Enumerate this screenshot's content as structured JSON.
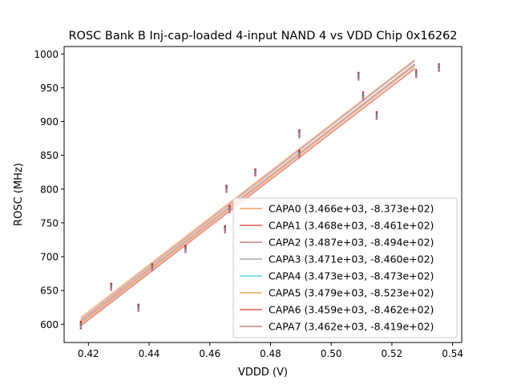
{
  "chart_data": {
    "type": "line",
    "title": "ROSC Bank B Inj-cap-loaded 4-input NAND 4 vs VDD Chip 0x16262",
    "xlabel": "VDDD (V)",
    "ylabel": "ROSC (MHz)",
    "xlim": [
      0.412,
      0.543
    ],
    "ylim": [
      573,
      1011
    ],
    "xticks": [
      0.42,
      0.44,
      0.46,
      0.48,
      0.5,
      0.52,
      0.54
    ],
    "xtick_labels": [
      "0.42",
      "0.44",
      "0.46",
      "0.48",
      "0.50",
      "0.52",
      "0.54"
    ],
    "yticks": [
      600,
      650,
      700,
      750,
      800,
      850,
      900,
      950,
      1000
    ],
    "ytick_labels": [
      "600",
      "650",
      "700",
      "750",
      "800",
      "850",
      "900",
      "950",
      "1000"
    ],
    "legend_position": "lower-right",
    "fit_x_range": [
      0.4175,
      0.5275
    ],
    "series": [
      {
        "name": "CAPA0",
        "label": "CAPA0 (3.466e+03, -8.373e+02)",
        "slope": 3466,
        "intercept": -837.3,
        "color": "#f5b783",
        "points": [
          [
            0.4175,
            602
          ],
          [
            0.4275,
            658
          ],
          [
            0.4365,
            627
          ],
          [
            0.441,
            687
          ],
          [
            0.452,
            714
          ],
          [
            0.465,
            743
          ],
          [
            0.4655,
            803
          ],
          [
            0.4665,
            773
          ],
          [
            0.475,
            827
          ],
          [
            0.4895,
            885
          ],
          [
            0.4895,
            855
          ],
          [
            0.509,
            969
          ],
          [
            0.5105,
            940
          ],
          [
            0.515,
            911
          ],
          [
            0.528,
            973
          ],
          [
            0.5355,
            982
          ]
        ]
      },
      {
        "name": "CAPA1",
        "label": "CAPA1 (3.468e+03, -8.461e+02)",
        "slope": 3468,
        "intercept": -846.1,
        "color": "#e98279",
        "points": [
          [
            0.4175,
            599
          ],
          [
            0.4275,
            655
          ],
          [
            0.4365,
            624
          ],
          [
            0.441,
            684
          ],
          [
            0.452,
            711
          ],
          [
            0.465,
            740
          ],
          [
            0.4655,
            800
          ],
          [
            0.4665,
            770
          ],
          [
            0.475,
            824
          ],
          [
            0.4895,
            881
          ],
          [
            0.4895,
            851
          ],
          [
            0.509,
            966
          ],
          [
            0.5105,
            937
          ],
          [
            0.515,
            908
          ],
          [
            0.528,
            970
          ],
          [
            0.5355,
            979
          ]
        ]
      },
      {
        "name": "CAPA2",
        "label": "CAPA2 (3.487e+03, -8.494e+02)",
        "slope": 3487,
        "intercept": -849.4,
        "color": "#d4a3a4",
        "points": [
          [
            0.4175,
            597
          ],
          [
            0.4275,
            653
          ],
          [
            0.4365,
            622
          ],
          [
            0.441,
            682
          ],
          [
            0.452,
            709
          ],
          [
            0.465,
            738
          ],
          [
            0.4655,
            798
          ],
          [
            0.4665,
            768
          ],
          [
            0.475,
            822
          ],
          [
            0.4895,
            879
          ],
          [
            0.4895,
            849
          ],
          [
            0.509,
            964
          ],
          [
            0.5105,
            935
          ],
          [
            0.515,
            906
          ],
          [
            0.528,
            968
          ],
          [
            0.5355,
            977
          ]
        ]
      },
      {
        "name": "CAPA3",
        "label": "CAPA3 (3.471e+03, -8.460e+02)",
        "slope": 3471,
        "intercept": -846.0,
        "color": "#bdbdbd",
        "points": [
          [
            0.4175,
            604
          ],
          [
            0.4275,
            660
          ],
          [
            0.4365,
            629
          ],
          [
            0.441,
            689
          ],
          [
            0.452,
            716
          ],
          [
            0.465,
            745
          ],
          [
            0.4655,
            805
          ],
          [
            0.4665,
            775
          ],
          [
            0.475,
            829
          ],
          [
            0.4895,
            887
          ],
          [
            0.4895,
            857
          ],
          [
            0.509,
            972
          ],
          [
            0.5105,
            943
          ],
          [
            0.515,
            914
          ],
          [
            0.528,
            976
          ],
          [
            0.5355,
            985
          ]
        ]
      },
      {
        "name": "CAPA4",
        "label": "CAPA4 (3.473e+03, -8.473e+02)",
        "slope": 3473,
        "intercept": -847.3,
        "color": "#8fdcea",
        "points": [
          [
            0.4175,
            600
          ],
          [
            0.4275,
            656
          ],
          [
            0.4365,
            625
          ],
          [
            0.441,
            685
          ],
          [
            0.452,
            712
          ],
          [
            0.465,
            741
          ],
          [
            0.4655,
            801
          ],
          [
            0.4665,
            771
          ],
          [
            0.475,
            825
          ],
          [
            0.4895,
            883
          ],
          [
            0.4895,
            853
          ],
          [
            0.509,
            967
          ],
          [
            0.5105,
            938
          ],
          [
            0.515,
            909
          ],
          [
            0.528,
            971
          ],
          [
            0.5355,
            980
          ]
        ]
      },
      {
        "name": "CAPA5",
        "label": "CAPA5 (3.479e+03, -8.523e+02)",
        "slope": 3479,
        "intercept": -852.3,
        "color": "#f8bb7e",
        "points": [
          [
            0.4175,
            594
          ],
          [
            0.4275,
            651
          ],
          [
            0.4365,
            620
          ],
          [
            0.441,
            680
          ],
          [
            0.452,
            707
          ],
          [
            0.465,
            736
          ],
          [
            0.4655,
            796
          ],
          [
            0.4665,
            766
          ],
          [
            0.475,
            820
          ],
          [
            0.4895,
            877
          ],
          [
            0.4895,
            847
          ],
          [
            0.509,
            962
          ],
          [
            0.5105,
            933
          ],
          [
            0.515,
            904
          ],
          [
            0.528,
            966
          ],
          [
            0.5355,
            975
          ]
        ]
      },
      {
        "name": "CAPA6",
        "label": "CAPA6 (3.459e+03, -8.462e+02)",
        "slope": 3459,
        "intercept": -846.2,
        "color": "#eb8a80",
        "points": [
          [
            0.4175,
            596
          ],
          [
            0.4275,
            652
          ],
          [
            0.4365,
            621
          ],
          [
            0.441,
            681
          ],
          [
            0.452,
            708
          ],
          [
            0.465,
            737
          ],
          [
            0.4655,
            797
          ],
          [
            0.4665,
            767
          ],
          [
            0.475,
            821
          ],
          [
            0.4895,
            878
          ],
          [
            0.4895,
            848
          ],
          [
            0.509,
            963
          ],
          [
            0.5105,
            934
          ],
          [
            0.515,
            905
          ],
          [
            0.528,
            967
          ],
          [
            0.5355,
            976
          ]
        ]
      },
      {
        "name": "CAPA7",
        "label": "CAPA7 (3.462e+03, -8.419e+02)",
        "slope": 3462,
        "intercept": -841.9,
        "color": "#cfa4a1",
        "points": [
          [
            0.4175,
            601
          ],
          [
            0.4275,
            657
          ],
          [
            0.4365,
            626
          ],
          [
            0.441,
            686
          ],
          [
            0.452,
            713
          ],
          [
            0.465,
            742
          ],
          [
            0.4655,
            802
          ],
          [
            0.4665,
            772
          ],
          [
            0.475,
            826
          ],
          [
            0.4895,
            884
          ],
          [
            0.4895,
            854
          ],
          [
            0.509,
            968
          ],
          [
            0.5105,
            939
          ],
          [
            0.515,
            910
          ],
          [
            0.528,
            972
          ],
          [
            0.5355,
            981
          ]
        ]
      }
    ],
    "marker_colors": [
      "#1f77b4",
      "#ff7f0e",
      "#2ca02c",
      "#d62728",
      "#9467bd",
      "#8c564b",
      "#e377c2",
      "#7f7f7f"
    ]
  }
}
